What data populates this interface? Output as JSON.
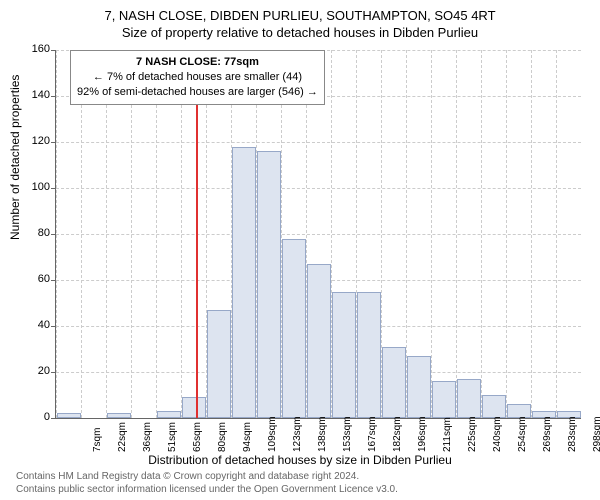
{
  "title_line1": "7, NASH CLOSE, DIBDEN PURLIEU, SOUTHAMPTON, SO45 4RT",
  "title_line2": "Size of property relative to detached houses in Dibden Purlieu",
  "ylabel": "Number of detached properties",
  "xlabel": "Distribution of detached houses by size in Dibden Purlieu",
  "footer_line1": "Contains HM Land Registry data © Crown copyright and database right 2024.",
  "footer_line2": "Contains public sector information licensed under the Open Government Licence v3.0.",
  "chart": {
    "type": "histogram",
    "xlim": [
      0,
      21
    ],
    "ylim": [
      0,
      160
    ],
    "ytick_step": 20,
    "yticks": [
      0,
      20,
      40,
      60,
      80,
      100,
      120,
      140,
      160
    ],
    "xtick_labels": [
      "7sqm",
      "22sqm",
      "36sqm",
      "51sqm",
      "65sqm",
      "80sqm",
      "94sqm",
      "109sqm",
      "123sqm",
      "138sqm",
      "153sqm",
      "167sqm",
      "182sqm",
      "196sqm",
      "211sqm",
      "225sqm",
      "240sqm",
      "254sqm",
      "269sqm",
      "283sqm",
      "298sqm"
    ],
    "bars": [
      2,
      0,
      2,
      0,
      3,
      9,
      47,
      118,
      116,
      78,
      67,
      55,
      55,
      31,
      27,
      16,
      17,
      10,
      6,
      3,
      3
    ],
    "bar_fill": "#dde4f0",
    "bar_border": "#97a8c8",
    "grid_color": "#cccccc",
    "axis_color": "#666666",
    "background": "#ffffff",
    "reference_line": {
      "x_index": 5.6,
      "color": "#e03030"
    },
    "annotation": {
      "line1": "7 NASH CLOSE: 77sqm",
      "line2": "← 7% of detached houses are smaller (44)",
      "line3": "92% of semi-detached houses are larger (546) →"
    }
  }
}
